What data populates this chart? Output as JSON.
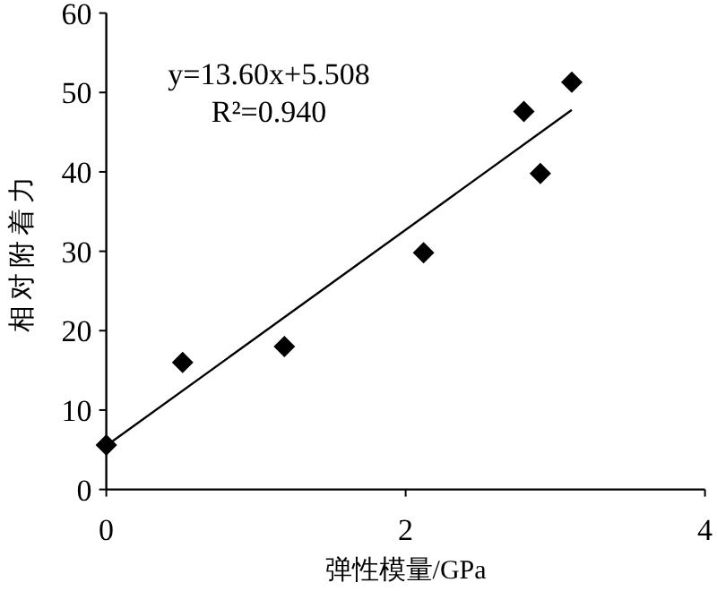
{
  "chart_data": {
    "type": "scatter",
    "xlabel": "弹性模量/GPa",
    "ylabel": "相对附着力",
    "annotations": [
      "y=13.60x+5.508",
      "R²=0.940"
    ],
    "xlim": [
      0,
      4
    ],
    "ylim": [
      0,
      60
    ],
    "xticks": [
      0,
      2,
      4
    ],
    "yticks": [
      0,
      10,
      20,
      30,
      40,
      50,
      60
    ],
    "grid": false,
    "series": [
      {
        "color": "#000000",
        "marker": "diamond",
        "x": [
          0,
          0.51,
          1.19,
          2.12,
          2.79,
          2.9,
          3.11
        ],
        "values": [
          5.6,
          16.0,
          18.0,
          29.8,
          47.6,
          39.8,
          51.3
        ]
      },
      {
        "type": "line",
        "color": "#000000",
        "line_style": "solid",
        "x": [
          0,
          3.11
        ],
        "values": [
          5.5,
          47.8
        ]
      }
    ]
  }
}
